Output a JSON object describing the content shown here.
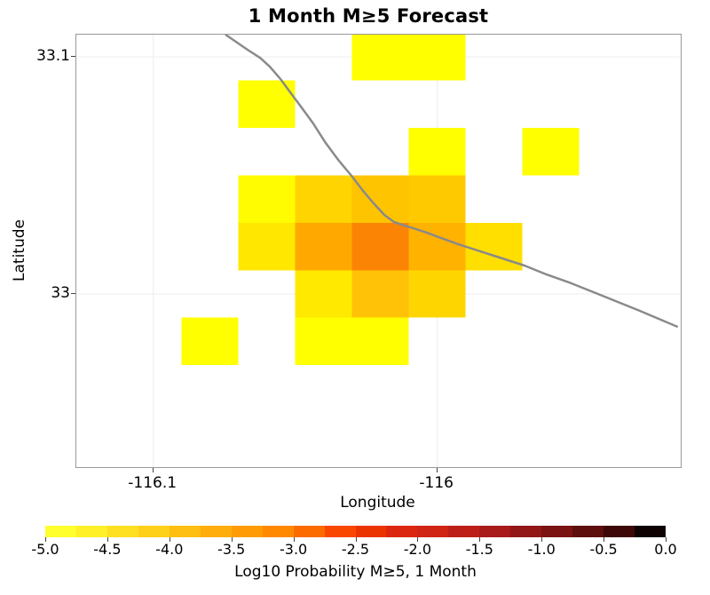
{
  "title": "1 Month M≥5 Forecast",
  "axes": {
    "x_label": "Longitude",
    "y_label": "Latitude",
    "x_ticks": [
      {
        "value": -116.1,
        "label": "-116.1"
      },
      {
        "value": -116.0,
        "label": "-116"
      }
    ],
    "y_ticks": [
      {
        "value": 33.1,
        "label": "33.1"
      },
      {
        "value": 33.0,
        "label": "33"
      }
    ]
  },
  "colors": {
    "plot_border": "#999999",
    "grid_line": "#ECECEC",
    "fault_line": "#8A8A8A",
    "background": "#FFFFFF",
    "text": "#000000"
  },
  "colorbar": {
    "label": "Log10 Probability M≥5, 1 Month",
    "min": -5.0,
    "max": 0.0,
    "tick_labels": [
      "-5.0",
      "-4.5",
      "-4.0",
      "-3.5",
      "-3.0",
      "-2.5",
      "-2.0",
      "-1.5",
      "-1.0",
      "-0.5",
      "0.0"
    ],
    "segment_colors": [
      "#FFFF2E",
      "#FFF028",
      "#FFE020",
      "#FFD019",
      "#FFBE12",
      "#FFAD0B",
      "#FF9C05",
      "#FF8A01",
      "#FB6B00",
      "#F94700",
      "#EB3300",
      "#DC2710",
      "#D02414",
      "#BD1F18",
      "#A81B1A",
      "#921717",
      "#7A1312",
      "#5E0E0D",
      "#3E0808",
      "#0E0202"
    ]
  },
  "chart_data": {
    "type": "heatmap",
    "title": "1 Month M≥5 Forecast",
    "xlabel": "Longitude",
    "ylabel": "Latitude",
    "xlim": [
      -116.127,
      -115.914
    ],
    "ylim": [
      32.927,
      33.109
    ],
    "grid": true,
    "cell_size_deg": 0.02,
    "cells": [
      {
        "lon": -116.02,
        "lat": 33.1,
        "color": "#FFFF00",
        "log10_prob": -4.95
      },
      {
        "lon": -116.0,
        "lat": 33.1,
        "color": "#FFFF00",
        "log10_prob": -4.95
      },
      {
        "lon": -116.06,
        "lat": 33.08,
        "color": "#FFFF00",
        "log10_prob": -4.95
      },
      {
        "lon": -116.0,
        "lat": 33.06,
        "color": "#FFFF00",
        "log10_prob": -4.95
      },
      {
        "lon": -115.96,
        "lat": 33.06,
        "color": "#FFFF00",
        "log10_prob": -4.95
      },
      {
        "lon": -116.06,
        "lat": 33.04,
        "color": "#FFFB00",
        "log10_prob": -4.85
      },
      {
        "lon": -116.04,
        "lat": 33.04,
        "color": "#FFD400",
        "log10_prob": -4.4
      },
      {
        "lon": -116.02,
        "lat": 33.04,
        "color": "#FFC400",
        "log10_prob": -4.25
      },
      {
        "lon": -116.0,
        "lat": 33.04,
        "color": "#FFC900",
        "log10_prob": -4.3
      },
      {
        "lon": -116.06,
        "lat": 33.02,
        "color": "#FFE700",
        "log10_prob": -4.6
      },
      {
        "lon": -116.04,
        "lat": 33.02,
        "color": "#FFA900",
        "log10_prob": -3.9
      },
      {
        "lon": -116.02,
        "lat": 33.02,
        "color": "#FB8404",
        "log10_prob": -3.55
      },
      {
        "lon": -116.0,
        "lat": 33.02,
        "color": "#FFB200",
        "log10_prob": -4.0
      },
      {
        "lon": -115.98,
        "lat": 33.02,
        "color": "#FFDF00",
        "log10_prob": -4.5
      },
      {
        "lon": -116.04,
        "lat": 33.0,
        "color": "#FFE900",
        "log10_prob": -4.65
      },
      {
        "lon": -116.02,
        "lat": 33.0,
        "color": "#FFC207",
        "log10_prob": -4.25
      },
      {
        "lon": -116.0,
        "lat": 33.0,
        "color": "#FFD500",
        "log10_prob": -4.45
      },
      {
        "lon": -116.08,
        "lat": 32.98,
        "color": "#FFFF00",
        "log10_prob": -4.95
      },
      {
        "lon": -116.04,
        "lat": 32.98,
        "color": "#FFFF00",
        "log10_prob": -4.9
      },
      {
        "lon": -116.02,
        "lat": 32.98,
        "color": "#FFFF00",
        "log10_prob": -4.9
      }
    ],
    "fault_line": [
      [
        -116.0746,
        33.1094
      ],
      [
        -116.0718,
        33.1071
      ],
      [
        -116.0668,
        33.103
      ],
      [
        -116.0624,
        33.0996
      ],
      [
        -116.059,
        33.0959
      ],
      [
        -116.0552,
        33.0906
      ],
      [
        -116.0515,
        33.0846
      ],
      [
        -116.048,
        33.079
      ],
      [
        -116.0437,
        33.0719
      ],
      [
        -116.0393,
        33.0637
      ],
      [
        -116.0349,
        33.0566
      ],
      [
        -116.0302,
        33.0498
      ],
      [
        -116.0261,
        33.0434
      ],
      [
        -116.0224,
        33.0382
      ],
      [
        -116.0186,
        33.0333
      ],
      [
        -116.0152,
        33.0303
      ],
      [
        -116.0114,
        33.0288
      ],
      [
        -116.0074,
        33.0273
      ],
      [
        -116.0036,
        33.0258
      ],
      [
        -115.9996,
        33.024
      ],
      [
        -115.9927,
        33.021
      ],
      [
        -115.9849,
        33.018
      ],
      [
        -115.9771,
        33.015
      ],
      [
        -115.9693,
        33.012
      ],
      [
        -115.9615,
        33.0082
      ],
      [
        -115.9537,
        33.0049
      ],
      [
        -115.9412,
        32.9989
      ],
      [
        -115.9287,
        32.9929
      ],
      [
        -115.9153,
        32.9861
      ]
    ]
  }
}
